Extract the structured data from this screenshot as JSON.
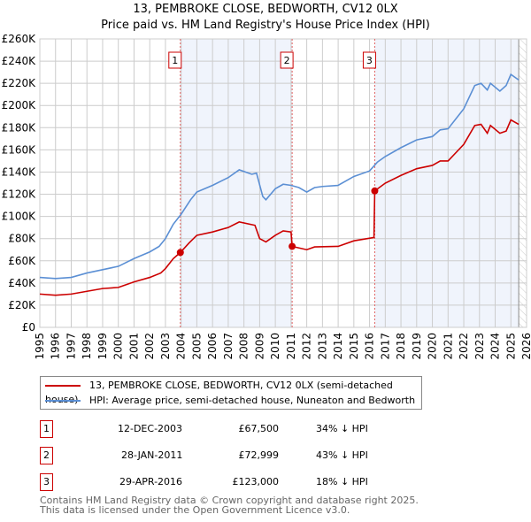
{
  "title": "13, PEMBROKE CLOSE, BEDWORTH, CV12 0LX",
  "subtitle": "Price paid vs. HM Land Registry's House Price Index (HPI)",
  "chart_data": {
    "type": "line",
    "title": "13, PEMBROKE CLOSE, BEDWORTH, CV12 0LX",
    "subtitle": "Price paid vs. HM Land Registry's House Price Index (HPI)",
    "xlim": [
      1995,
      2026
    ],
    "ylim": [
      0,
      260000
    ],
    "x_ticks": [
      "1995",
      "1996",
      "1997",
      "1998",
      "1999",
      "2000",
      "2001",
      "2002",
      "2003",
      "2004",
      "2005",
      "2006",
      "2007",
      "2008",
      "2009",
      "2010",
      "2011",
      "2012",
      "2013",
      "2014",
      "2015",
      "2016",
      "2017",
      "2018",
      "2019",
      "2020",
      "2021",
      "2022",
      "2023",
      "2024",
      "2025",
      "2026"
    ],
    "y_ticks": [
      {
        "v": 0,
        "l": "£0"
      },
      {
        "v": 20000,
        "l": "£20K"
      },
      {
        "v": 40000,
        "l": "£40K"
      },
      {
        "v": 60000,
        "l": "£60K"
      },
      {
        "v": 80000,
        "l": "£80K"
      },
      {
        "v": 100000,
        "l": "£100K"
      },
      {
        "v": 120000,
        "l": "£120K"
      },
      {
        "v": 140000,
        "l": "£140K"
      },
      {
        "v": 160000,
        "l": "£160K"
      },
      {
        "v": 180000,
        "l": "£180K"
      },
      {
        "v": 200000,
        "l": "£200K"
      },
      {
        "v": 220000,
        "l": "£220K"
      },
      {
        "v": 240000,
        "l": "£240K"
      },
      {
        "v": 260000,
        "l": "£260K"
      }
    ],
    "grid": true,
    "forecast_from": 2025.5,
    "series": [
      {
        "name": "13, PEMBROKE CLOSE, BEDWORTH, CV12 0LX (semi-detached house)",
        "color": "#cc0000",
        "points": [
          [
            1995,
            30000
          ],
          [
            1996,
            29000
          ],
          [
            1997,
            30000
          ],
          [
            1998,
            32500
          ],
          [
            1999,
            35000
          ],
          [
            2000,
            36000
          ],
          [
            2001,
            41000
          ],
          [
            2002,
            45000
          ],
          [
            2002.7,
            49000
          ],
          [
            2003,
            53000
          ],
          [
            2003.5,
            62000
          ],
          [
            2003.95,
            67500
          ],
          [
            2004.5,
            76000
          ],
          [
            2005,
            83000
          ],
          [
            2006,
            86000
          ],
          [
            2007,
            90000
          ],
          [
            2007.7,
            95000
          ],
          [
            2008.7,
            92000
          ],
          [
            2009,
            80000
          ],
          [
            2009.4,
            77000
          ],
          [
            2010,
            83000
          ],
          [
            2010.5,
            87000
          ],
          [
            2011.0,
            86000
          ],
          [
            2011.07,
            72999
          ],
          [
            2012,
            70000
          ],
          [
            2012.5,
            72500
          ],
          [
            2014,
            73000
          ],
          [
            2015,
            78000
          ],
          [
            2016.28,
            81000
          ],
          [
            2016.33,
            123000
          ],
          [
            2017,
            130000
          ],
          [
            2018,
            137000
          ],
          [
            2019,
            143000
          ],
          [
            2020,
            146000
          ],
          [
            2020.5,
            150000
          ],
          [
            2021,
            150000
          ],
          [
            2022,
            165000
          ],
          [
            2022.7,
            182000
          ],
          [
            2023.1,
            183000
          ],
          [
            2023.5,
            175000
          ],
          [
            2023.7,
            182000
          ],
          [
            2024.3,
            175000
          ],
          [
            2024.7,
            177000
          ],
          [
            2025.0,
            187000
          ],
          [
            2025.5,
            183000
          ]
        ]
      },
      {
        "name": "HPI: Average price, semi-detached house, Nuneaton and Bedworth",
        "color": "#5b8fd4",
        "points": [
          [
            1995,
            45000
          ],
          [
            1996,
            44000
          ],
          [
            1997,
            45000
          ],
          [
            1998,
            49000
          ],
          [
            1999,
            52000
          ],
          [
            2000,
            55000
          ],
          [
            2001,
            62000
          ],
          [
            2002,
            68000
          ],
          [
            2002.6,
            73000
          ],
          [
            2003,
            80000
          ],
          [
            2003.5,
            93000
          ],
          [
            2004,
            102000
          ],
          [
            2004.6,
            115000
          ],
          [
            2005,
            122000
          ],
          [
            2006,
            128000
          ],
          [
            2007,
            135000
          ],
          [
            2007.7,
            142000
          ],
          [
            2008.5,
            138000
          ],
          [
            2008.8,
            139000
          ],
          [
            2009.2,
            118000
          ],
          [
            2009.4,
            115000
          ],
          [
            2010,
            125000
          ],
          [
            2010.5,
            129000
          ],
          [
            2011,
            128000
          ],
          [
            2011.5,
            126000
          ],
          [
            2012,
            122000
          ],
          [
            2012.5,
            126000
          ],
          [
            2013,
            127000
          ],
          [
            2014,
            128000
          ],
          [
            2015,
            136000
          ],
          [
            2016,
            141000
          ],
          [
            2016.5,
            149000
          ],
          [
            2017,
            154000
          ],
          [
            2018,
            162000
          ],
          [
            2019,
            169000
          ],
          [
            2020,
            172000
          ],
          [
            2020.5,
            178000
          ],
          [
            2021,
            179000
          ],
          [
            2022,
            197000
          ],
          [
            2022.7,
            218000
          ],
          [
            2023.1,
            220000
          ],
          [
            2023.5,
            214000
          ],
          [
            2023.7,
            220000
          ],
          [
            2024.3,
            213000
          ],
          [
            2024.7,
            218000
          ],
          [
            2025.0,
            228000
          ],
          [
            2025.5,
            223000
          ]
        ]
      }
    ],
    "sales": [
      {
        "label": "1",
        "x": 2003.95,
        "y": 67500
      },
      {
        "label": "2",
        "x": 2011.07,
        "y": 72999
      },
      {
        "label": "3",
        "x": 2016.33,
        "y": 123000
      }
    ]
  },
  "legend": {
    "property": "13, PEMBROKE CLOSE, BEDWORTH, CV12 0LX (semi-detached house)",
    "hpi": "HPI: Average price, semi-detached house, Nuneaton and Bedworth"
  },
  "transactions": [
    {
      "num": "1",
      "date": "12-DEC-2003",
      "price": "£67,500",
      "pct": "34% ↓ HPI"
    },
    {
      "num": "2",
      "date": "28-JAN-2011",
      "price": "£72,999",
      "pct": "43% ↓ HPI"
    },
    {
      "num": "3",
      "date": "29-APR-2016",
      "price": "£123,000",
      "pct": "18% ↓ HPI"
    }
  ],
  "footer": {
    "line1": "Contains HM Land Registry data © Crown copyright and database right 2025.",
    "line2": "This data is licensed under the Open Government Licence v3.0."
  }
}
